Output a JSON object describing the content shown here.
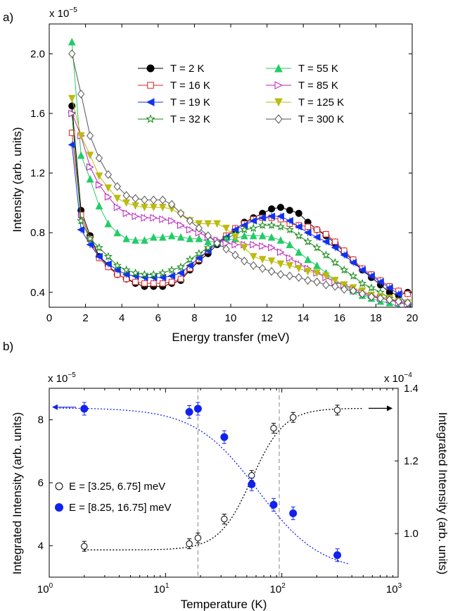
{
  "chart_data": [
    {
      "type": "line",
      "panel_label": "a)",
      "xlabel": "Energy transfer (meV)",
      "ylabel": "Intensity (arb. units)",
      "y_multiplier_base": "x 10",
      "y_multiplier_exp": "−5",
      "xlim": [
        0,
        20
      ],
      "ylim": [
        0.3,
        2.2
      ],
      "xticks": [
        0,
        2,
        4,
        6,
        8,
        10,
        12,
        14,
        16,
        18,
        20
      ],
      "yticks": [
        0.4,
        0.8,
        1.2,
        1.6,
        2.0
      ],
      "ytick_labels": [
        "0.4",
        "0.8",
        "1.2",
        "1.6",
        "2.0"
      ],
      "legend_position": "top-right",
      "series": [
        {
          "name": "T = 2 K",
          "color": "#000000",
          "marker": "circle-filled",
          "x": [
            1.25,
            1.75,
            2.25,
            2.75,
            3.25,
            3.75,
            4.25,
            4.75,
            5.25,
            5.75,
            6.25,
            6.75,
            7.25,
            7.75,
            8.25,
            8.75,
            9.25,
            9.75,
            10.25,
            10.75,
            11.25,
            11.75,
            12.25,
            12.75,
            13.25,
            13.75,
            14.25,
            14.75,
            15.25,
            15.75,
            16.25,
            16.75,
            17.25,
            17.75,
            18.25,
            18.75,
            19.25,
            19.75
          ],
          "y": [
            1.65,
            0.95,
            0.78,
            0.64,
            0.58,
            0.52,
            0.49,
            0.46,
            0.44,
            0.44,
            0.44,
            0.46,
            0.48,
            0.55,
            0.61,
            0.66,
            0.72,
            0.77,
            0.82,
            0.87,
            0.9,
            0.93,
            0.96,
            0.97,
            0.95,
            0.93,
            0.87,
            0.82,
            0.78,
            0.73,
            0.67,
            0.61,
            0.55,
            0.5,
            0.45,
            0.4,
            0.38,
            0.4
          ]
        },
        {
          "name": "T = 16 K",
          "color": "#dd2222",
          "marker": "square-open",
          "x": [
            1.25,
            1.75,
            2.25,
            2.75,
            3.25,
            3.75,
            4.25,
            4.75,
            5.25,
            5.75,
            6.25,
            6.75,
            7.25,
            7.75,
            8.25,
            8.75,
            9.25,
            9.75,
            10.25,
            10.75,
            11.25,
            11.75,
            12.25,
            12.75,
            13.25,
            13.75,
            14.25,
            14.75,
            15.25,
            15.75,
            16.25,
            16.75,
            17.25,
            17.75,
            18.25,
            18.75,
            19.25,
            19.75
          ],
          "y": [
            1.47,
            0.92,
            0.76,
            0.63,
            0.57,
            0.52,
            0.49,
            0.47,
            0.46,
            0.46,
            0.46,
            0.47,
            0.49,
            0.56,
            0.62,
            0.68,
            0.73,
            0.78,
            0.83,
            0.86,
            0.89,
            0.9,
            0.9,
            0.89,
            0.86,
            0.85,
            0.84,
            0.82,
            0.79,
            0.74,
            0.68,
            0.62,
            0.56,
            0.52,
            0.48,
            0.44,
            0.41,
            0.39
          ]
        },
        {
          "name": "T = 19 K",
          "color": "#1133ee",
          "marker": "triangle-left-filled",
          "x": [
            1.25,
            1.75,
            2.25,
            2.75,
            3.25,
            3.75,
            4.25,
            4.75,
            5.25,
            5.75,
            6.25,
            6.75,
            7.25,
            7.75,
            8.25,
            8.75,
            9.25,
            9.75,
            10.25,
            10.75,
            11.25,
            11.75,
            12.25,
            12.75,
            13.25,
            13.75,
            14.25,
            14.75,
            15.25,
            15.75,
            16.25,
            16.75,
            17.25,
            17.75,
            18.25,
            18.75,
            19.25,
            19.75
          ],
          "y": [
            1.39,
            0.82,
            0.72,
            0.64,
            0.59,
            0.55,
            0.52,
            0.51,
            0.5,
            0.5,
            0.5,
            0.51,
            0.53,
            0.58,
            0.63,
            0.68,
            0.73,
            0.77,
            0.82,
            0.85,
            0.88,
            0.9,
            0.91,
            0.91,
            0.88,
            0.84,
            0.8,
            0.77,
            0.74,
            0.7,
            0.65,
            0.6,
            0.55,
            0.51,
            0.47,
            0.43,
            0.39,
            0.31
          ]
        },
        {
          "name": "T = 32 K",
          "color": "#118811",
          "marker": "star-open",
          "x": [
            1.25,
            1.75,
            2.25,
            2.75,
            3.25,
            3.75,
            4.25,
            4.75,
            5.25,
            5.75,
            6.25,
            6.75,
            7.25,
            7.75,
            8.25,
            8.75,
            9.25,
            9.75,
            10.25,
            10.75,
            11.25,
            11.75,
            12.25,
            12.75,
            13.25,
            13.75,
            14.25,
            14.75,
            15.25,
            15.75,
            16.25,
            16.75,
            17.25,
            17.75,
            18.25,
            18.75,
            19.25,
            19.75
          ],
          "y": [
            1.6,
            0.88,
            0.76,
            0.7,
            0.64,
            0.58,
            0.55,
            0.53,
            0.52,
            0.52,
            0.53,
            0.55,
            0.57,
            0.62,
            0.66,
            0.7,
            0.73,
            0.76,
            0.79,
            0.82,
            0.83,
            0.85,
            0.85,
            0.84,
            0.82,
            0.78,
            0.74,
            0.7,
            0.65,
            0.6,
            0.55,
            0.51,
            0.46,
            0.43,
            0.4,
            0.36,
            0.34,
            0.31
          ]
        },
        {
          "name": "T = 55 K",
          "color": "#22cc66",
          "marker": "triangle-up-filled",
          "x": [
            1.25,
            1.75,
            2.25,
            2.75,
            3.25,
            3.75,
            4.25,
            4.75,
            5.25,
            5.75,
            6.25,
            6.75,
            7.25,
            7.75,
            8.25,
            8.75,
            9.25,
            9.75,
            10.25,
            10.75,
            11.25,
            11.75,
            12.25,
            12.75,
            13.25,
            13.75,
            14.25,
            14.75,
            15.25,
            15.75,
            16.25,
            16.75,
            17.25,
            17.75,
            18.25,
            18.75,
            19.25,
            19.75
          ],
          "y": [
            2.08,
            1.32,
            1.16,
            0.98,
            0.86,
            0.8,
            0.76,
            0.75,
            0.75,
            0.77,
            0.77,
            0.78,
            0.77,
            0.76,
            0.76,
            0.74,
            0.74,
            0.75,
            0.76,
            0.78,
            0.78,
            0.78,
            0.77,
            0.75,
            0.72,
            0.67,
            0.62,
            0.58,
            0.53,
            0.48,
            0.44,
            0.41,
            0.38,
            0.36,
            0.34,
            0.33,
            0.3,
            0.28
          ]
        },
        {
          "name": "T = 85 K",
          "color": "#bb22bb",
          "marker": "triangle-right-open",
          "x": [
            1.25,
            1.75,
            2.25,
            2.75,
            3.25,
            3.75,
            4.25,
            4.75,
            5.25,
            5.75,
            6.25,
            6.75,
            7.25,
            7.75,
            8.25,
            8.75,
            9.25,
            9.75,
            10.25,
            10.75,
            11.25,
            11.75,
            12.25,
            12.75,
            13.25,
            13.75,
            14.25,
            14.75,
            15.25,
            15.75,
            16.25,
            16.75,
            17.25,
            17.75,
            18.25,
            18.75,
            19.25,
            19.75
          ],
          "y": [
            1.6,
            1.45,
            1.24,
            1.12,
            1.04,
            0.97,
            0.93,
            0.91,
            0.9,
            0.9,
            0.89,
            0.88,
            0.85,
            0.82,
            0.8,
            0.77,
            0.75,
            0.73,
            0.72,
            0.72,
            0.72,
            0.71,
            0.7,
            0.67,
            0.63,
            0.59,
            0.56,
            0.53,
            0.5,
            0.47,
            0.45,
            0.42,
            0.4,
            0.38,
            0.36,
            0.35,
            0.33,
            0.32
          ]
        },
        {
          "name": "T = 125 K",
          "color": "#bbbb11",
          "marker": "triangle-down-filled",
          "x": [
            1.25,
            1.75,
            2.25,
            2.75,
            3.25,
            3.75,
            4.25,
            4.75,
            5.25,
            5.75,
            6.25,
            6.75,
            7.25,
            7.75,
            8.25,
            8.75,
            9.25,
            9.75,
            10.25,
            10.75,
            11.25,
            11.75,
            12.25,
            12.75,
            13.25,
            13.75,
            14.25,
            14.75,
            15.25,
            15.75,
            16.25,
            16.75,
            17.25,
            17.75,
            18.25,
            18.75,
            19.25,
            19.75
          ],
          "y": [
            1.7,
            1.45,
            1.32,
            1.18,
            1.1,
            1.03,
            1.0,
            0.98,
            0.97,
            0.97,
            0.97,
            0.96,
            0.92,
            0.88,
            0.86,
            0.86,
            0.86,
            0.83,
            0.77,
            0.7,
            0.64,
            0.62,
            0.61,
            0.59,
            0.58,
            0.56,
            0.54,
            0.53,
            0.51,
            0.48,
            0.45,
            0.43,
            0.41,
            0.38,
            0.37,
            0.36,
            0.34,
            0.33
          ]
        },
        {
          "name": "T = 300 K",
          "color": "#555555",
          "marker": "diamond-open",
          "x": [
            1.25,
            1.75,
            2.25,
            2.75,
            3.25,
            3.75,
            4.25,
            4.75,
            5.25,
            5.75,
            6.25,
            6.75,
            7.25,
            7.75,
            8.25,
            8.75,
            9.25,
            9.75,
            10.25,
            10.75,
            11.25,
            11.75,
            12.25,
            12.75,
            13.25,
            13.75,
            14.25,
            14.75,
            15.25,
            15.75,
            16.25,
            16.75,
            17.25,
            17.75,
            18.25,
            18.75,
            19.25,
            19.75
          ],
          "y": [
            2.0,
            1.73,
            1.45,
            1.3,
            1.19,
            1.11,
            1.05,
            1.03,
            1.02,
            1.02,
            1.02,
            0.99,
            0.93,
            0.88,
            0.83,
            0.78,
            0.73,
            0.69,
            0.65,
            0.61,
            0.58,
            0.56,
            0.54,
            0.52,
            0.51,
            0.5,
            0.48,
            0.47,
            0.45,
            0.44,
            0.42,
            0.41,
            0.39,
            0.37,
            0.36,
            0.35,
            0.34,
            0.33
          ]
        }
      ]
    },
    {
      "type": "scatter",
      "panel_label": "b)",
      "xlabel": "Temperature (K)",
      "ylabel_left": "Integrated Intensity (arb. units)",
      "ylabel_right": "Integrated Intensity (arb. units)",
      "y_left_multiplier_base": "x 10",
      "y_left_multiplier_exp": "−5",
      "y_right_multiplier_base": "x 10",
      "y_right_multiplier_exp": "−4",
      "x_scale": "log",
      "xlim": [
        1,
        1000
      ],
      "x_tick_labels": [
        {
          "base": "10",
          "exp": "0"
        },
        {
          "base": "10",
          "exp": "1"
        },
        {
          "base": "10",
          "exp": "2"
        },
        {
          "base": "10",
          "exp": "3"
        }
      ],
      "ylim_left": [
        3,
        9
      ],
      "yticks_left": [
        "4",
        "6",
        "8"
      ],
      "ylim_right": [
        0.88,
        1.4
      ],
      "yticks_right": [
        "1.0",
        "1.2",
        "1.4"
      ],
      "vertical_lines": [
        19,
        95
      ],
      "legend_position": "left",
      "series": [
        {
          "name": "E = [3.25, 6.75] meV",
          "color": "#000000",
          "marker": "circle-open",
          "axis": "right",
          "x": [
            2,
            16,
            19,
            32,
            55,
            85,
            125,
            300
          ],
          "y": [
            0.965,
            0.972,
            0.988,
            1.04,
            1.16,
            1.29,
            1.32,
            1.34
          ]
        },
        {
          "name": "E = [8.25, 16.75] meV",
          "color": "#1122ee",
          "marker": "circle-filled",
          "axis": "left",
          "x": [
            2,
            16,
            19,
            32,
            55,
            85,
            125,
            300
          ],
          "y": [
            8.35,
            8.25,
            8.35,
            7.45,
            5.95,
            5.3,
            5.03,
            3.7
          ]
        }
      ]
    }
  ]
}
